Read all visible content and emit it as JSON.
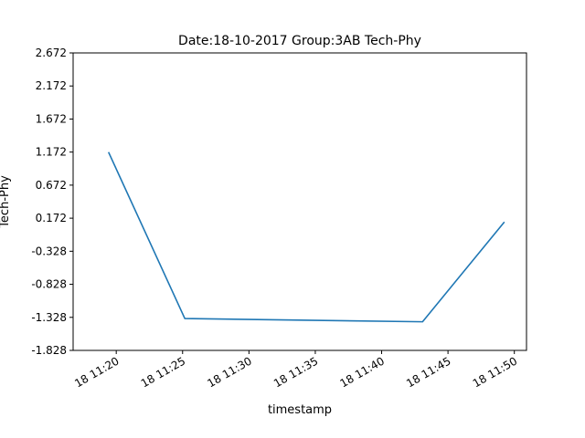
{
  "chart_data": {
    "type": "line",
    "title": "Date:18-10-2017 Group:3AB Tech-Phy",
    "xlabel": "timestamp",
    "ylabel": "Tech-Phy",
    "x_tick_labels": [
      "18 11:20",
      "18 11:25",
      "18 11:30",
      "18 11:35",
      "18 11:40",
      "18 11:45",
      "18 11:50"
    ],
    "y_tick_labels": [
      "2.672",
      "2.172",
      "1.672",
      "1.172",
      "0.672",
      "0.172",
      "-0.328",
      "-0.828",
      "-1.328",
      "-1.828"
    ],
    "xlim": [
      "2017-10-18 11:16:45",
      "2017-10-18 11:50:55"
    ],
    "ylim": [
      -1.828,
      2.672
    ],
    "grid": false,
    "series": [
      {
        "color": "#1f77b4",
        "x": [
          "2017-10-18 11:19:25",
          "2017-10-18 11:25:10",
          "2017-10-18 11:43:05",
          "2017-10-18 11:49:15"
        ],
        "y": [
          1.172,
          -1.346,
          -1.395,
          0.115
        ]
      }
    ]
  }
}
